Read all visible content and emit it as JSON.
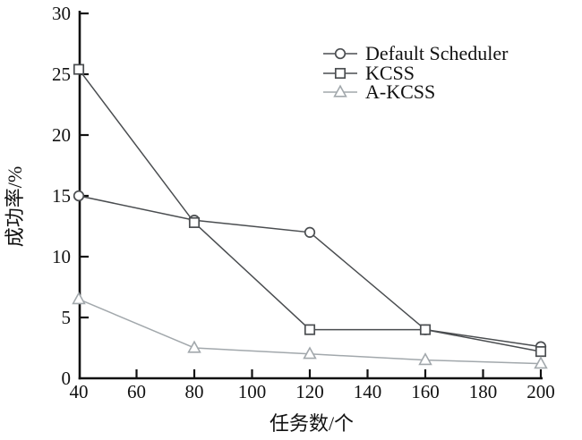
{
  "chart_data": {
    "type": "line",
    "title": "",
    "xlabel": "任务数/个",
    "ylabel": "成功率/%",
    "x": [
      40,
      80,
      120,
      160,
      200
    ],
    "xlim": [
      40,
      200
    ],
    "ylim": [
      0,
      30
    ],
    "x_ticks": [
      40,
      60,
      80,
      100,
      120,
      140,
      160,
      180,
      200
    ],
    "y_ticks": [
      0,
      5,
      10,
      15,
      20,
      25,
      30
    ],
    "grid": false,
    "legend_position": "top-right-inside",
    "series": [
      {
        "name": "Default Scheduler",
        "marker": "circle",
        "color": "#4a4d50",
        "values": [
          15.0,
          13.0,
          12.0,
          4.0,
          2.6
        ]
      },
      {
        "name": "KCSS",
        "marker": "square",
        "color": "#4a4d50",
        "values": [
          25.4,
          12.8,
          4.0,
          4.0,
          2.2
        ]
      },
      {
        "name": "A-KCSS",
        "marker": "triangle",
        "color": "#a2a8ac",
        "values": [
          6.5,
          2.5,
          2.0,
          1.5,
          1.2
        ]
      }
    ],
    "axis_color": "#111111",
    "text_color": "#111111",
    "marker_fill": "#ffffff"
  }
}
